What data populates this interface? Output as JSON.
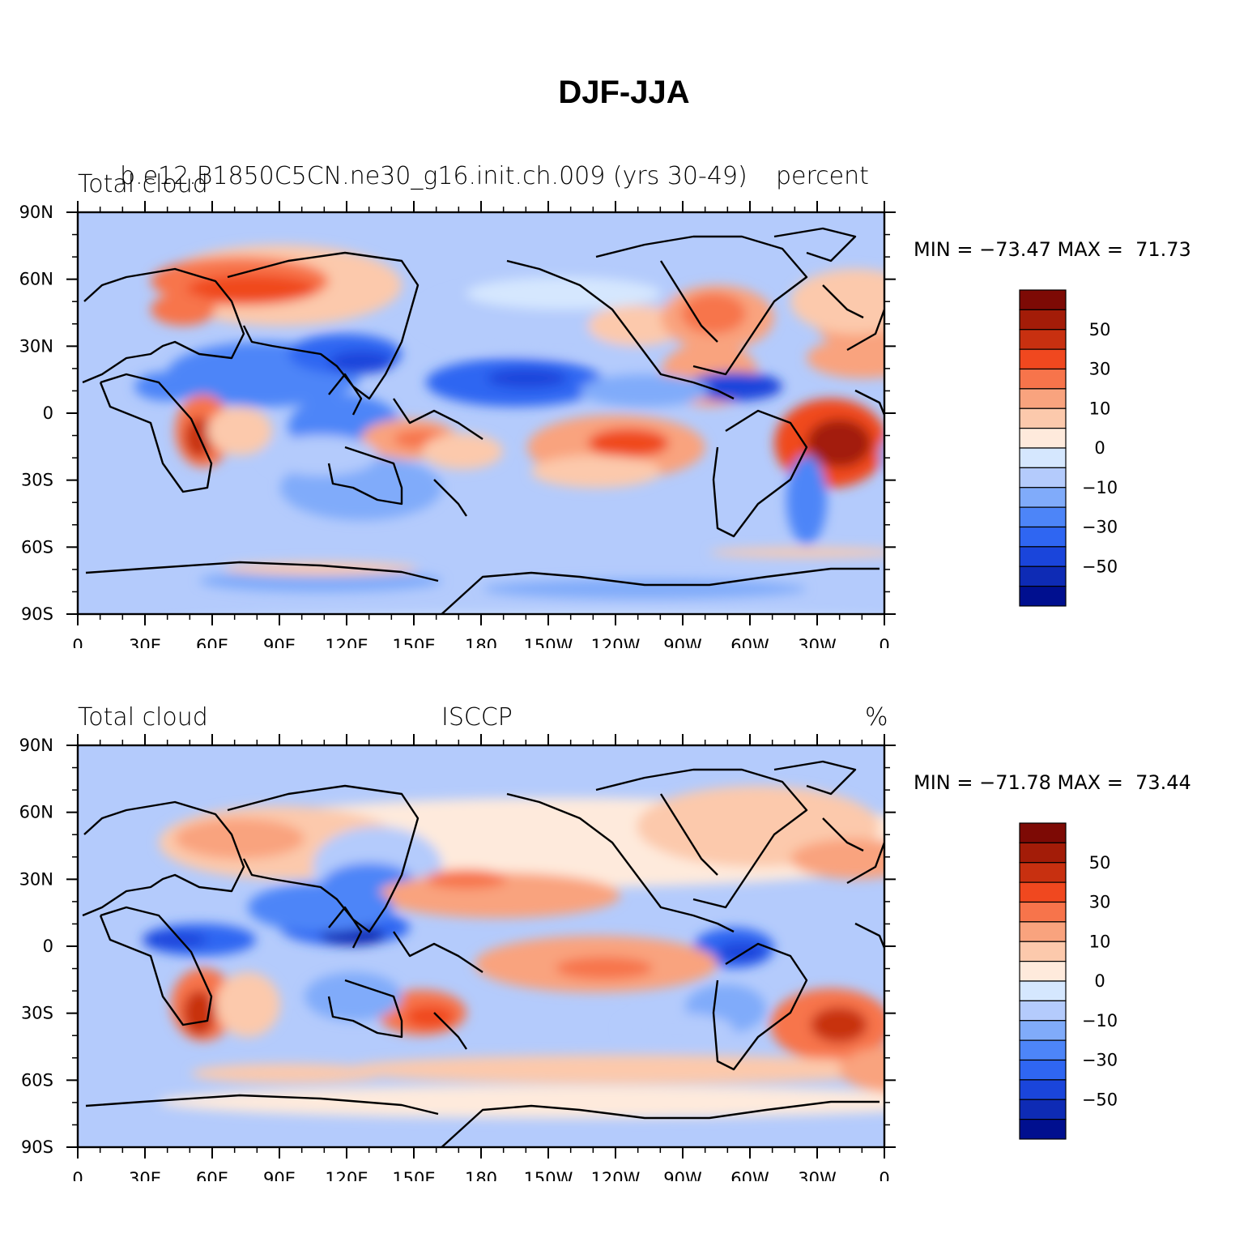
{
  "title": "DJF-JJA",
  "palette": [
    "#000f8f",
    "#0e2bb5",
    "#1a45db",
    "#2f66f2",
    "#4d85f8",
    "#80abfa",
    "#b4cbfc",
    "#d5e7fe",
    "#feeadc",
    "#fcc9ac",
    "#f9a37e",
    "#f7744b",
    "#f0481f",
    "#c83010",
    "#a31c08",
    "#7d0a05"
  ],
  "colorbar_labels": [
    "50",
    "30",
    "10",
    "0",
    "−10",
    "−30",
    "−50"
  ],
  "lat_labels": [
    "90N",
    "60N",
    "30N",
    "0",
    "30S",
    "60S",
    "90S"
  ],
  "lon_labels": [
    "0",
    "30E",
    "60E",
    "90E",
    "120E",
    "150E",
    "180",
    "150W",
    "120W",
    "90W",
    "60W",
    "30W",
    "0"
  ],
  "panels": [
    {
      "left_title": "Total cloud",
      "center_title": "b.e12.B1850C5CN.ne30_g16.init.ch.009 (yrs 30-49)",
      "right_title": "percent",
      "min_max": "MIN = −73.47 MAX =  71.73"
    },
    {
      "left_title": "Total cloud",
      "center_title": "ISCCP",
      "right_title": "%",
      "min_max": "MIN = −71.78 MAX =  73.44"
    }
  ]
}
